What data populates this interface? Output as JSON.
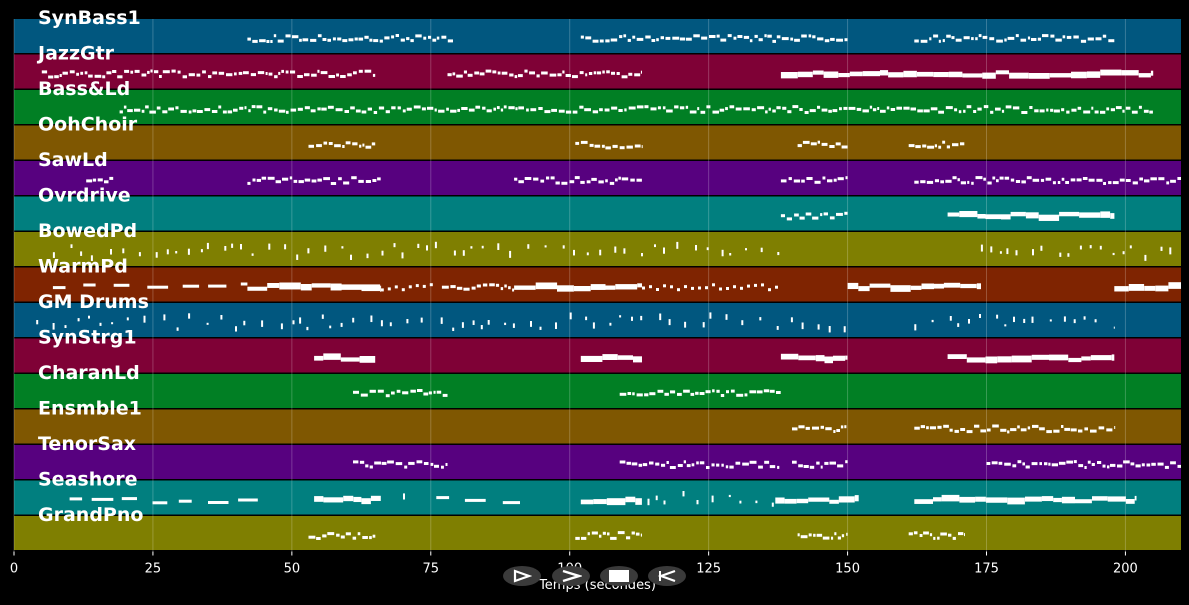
{
  "axis": {
    "xlabel": "Temps (secondes)",
    "xlim": [
      0,
      210
    ],
    "ticks": [
      0,
      25,
      50,
      75,
      100,
      125,
      150,
      175,
      200
    ]
  },
  "tracks": [
    {
      "name": "SynBass1",
      "color": "#01577f",
      "notes": "a"
    },
    {
      "name": "JazzGtr",
      "color": "#7f0136",
      "notes": "b"
    },
    {
      "name": "Bass&Ld",
      "color": "#017f24",
      "notes": "c"
    },
    {
      "name": "OohChoir",
      "color": "#7f5701",
      "notes": "d"
    },
    {
      "name": "SawLd",
      "color": "#57017f",
      "notes": "e"
    },
    {
      "name": "Ovrdrive",
      "color": "#017f7f",
      "notes": "f"
    },
    {
      "name": "BowedPd",
      "color": "#7f7f01",
      "notes": "g"
    },
    {
      "name": "WarmPd",
      "color": "#7f2401",
      "notes": "h"
    },
    {
      "name": "GM Drums",
      "color": "#01577f",
      "notes": "i"
    },
    {
      "name": "SynStrg1",
      "color": "#7f0136",
      "notes": "j"
    },
    {
      "name": "CharanLd",
      "color": "#017f24",
      "notes": "k"
    },
    {
      "name": "Ensmble1",
      "color": "#7f5701",
      "notes": "l"
    },
    {
      "name": "TenorSax",
      "color": "#57017f",
      "notes": "m"
    },
    {
      "name": "Seashore",
      "color": "#017f7f",
      "notes": "n"
    },
    {
      "name": "GrandPno",
      "color": "#7f7f01",
      "notes": "o"
    }
  ],
  "controls": [
    {
      "id": "play-button",
      "icon": "play-outline-icon"
    },
    {
      "id": "next-button",
      "icon": "chevron-right-icon"
    },
    {
      "id": "stop-button",
      "icon": "stop-icon"
    },
    {
      "id": "rewind-button",
      "icon": "rewind-outline-icon"
    }
  ],
  "activity": {
    "a": [
      [
        42,
        79,
        "dense"
      ],
      [
        102,
        150,
        "dense"
      ],
      [
        162,
        198,
        "dense"
      ]
    ],
    "b": [
      [
        5,
        65,
        "dense"
      ],
      [
        78,
        113,
        "dense"
      ],
      [
        138,
        205,
        "block"
      ]
    ],
    "c": [
      [
        19,
        205,
        "dense"
      ]
    ],
    "d": [
      [
        53,
        65,
        "dense"
      ],
      [
        101,
        113,
        "dense"
      ],
      [
        141,
        150,
        "dense"
      ],
      [
        161,
        171,
        "dense"
      ]
    ],
    "e": [
      [
        13,
        18,
        "dense"
      ],
      [
        42,
        66,
        "dense"
      ],
      [
        90,
        113,
        "dense"
      ],
      [
        138,
        150,
        "dense"
      ],
      [
        162,
        210,
        "dense"
      ]
    ],
    "f": [
      [
        138,
        150,
        "dense"
      ],
      [
        168,
        198,
        "block"
      ]
    ],
    "g": [
      [
        7,
        138,
        "sparse"
      ],
      [
        174,
        210,
        "sparse"
      ]
    ],
    "h": [
      [
        7,
        42,
        "dash"
      ],
      [
        42,
        66,
        "block"
      ],
      [
        66,
        76,
        "dots"
      ],
      [
        77,
        90,
        "dense"
      ],
      [
        90,
        113,
        "block"
      ],
      [
        113,
        138,
        "dots"
      ],
      [
        150,
        174,
        "block"
      ],
      [
        198,
        210,
        "block"
      ]
    ],
    "i": [
      [
        4,
        150,
        "sparse"
      ],
      [
        162,
        198,
        "sparse"
      ]
    ],
    "j": [
      [
        54,
        65,
        "block"
      ],
      [
        102,
        113,
        "block"
      ],
      [
        138,
        150,
        "block"
      ],
      [
        168,
        198,
        "block"
      ]
    ],
    "k": [
      [
        61,
        78,
        "dense"
      ],
      [
        109,
        138,
        "dense"
      ]
    ],
    "l": [
      [
        140,
        150,
        "dense"
      ],
      [
        162,
        198,
        "dense"
      ]
    ],
    "m": [
      [
        61,
        78,
        "dense"
      ],
      [
        109,
        138,
        "dense"
      ],
      [
        140,
        150,
        "dense"
      ],
      [
        175,
        210,
        "dense"
      ]
    ],
    "n": [
      [
        10,
        45,
        "dash"
      ],
      [
        54,
        66,
        "block"
      ],
      [
        70,
        73,
        "sparse"
      ],
      [
        76,
        92,
        "dash"
      ],
      [
        102,
        113,
        "block"
      ],
      [
        114,
        137,
        "sparse"
      ],
      [
        137,
        152,
        "block"
      ],
      [
        162,
        202,
        "block"
      ]
    ],
    "o": [
      [
        53,
        65,
        "dense"
      ],
      [
        101,
        113,
        "dense"
      ],
      [
        141,
        150,
        "dense"
      ],
      [
        161,
        171,
        "dense"
      ]
    ]
  }
}
